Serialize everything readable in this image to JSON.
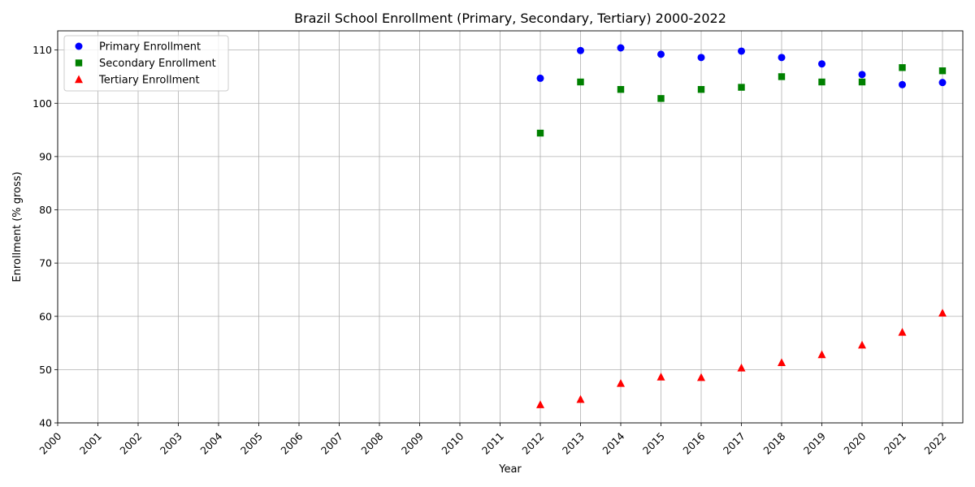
{
  "chart_data": {
    "type": "scatter",
    "title": "Brazil School Enrollment (Primary, Secondary, Tertiary) 2000-2022",
    "xlabel": "Year",
    "ylabel": "Enrollment (% gross)",
    "xlim": [
      2000,
      2022
    ],
    "ylim": [
      40,
      113.6
    ],
    "x_ticks": [
      "2000",
      "2001",
      "2002",
      "2003",
      "2004",
      "2005",
      "2006",
      "2007",
      "2008",
      "2009",
      "2010",
      "2011",
      "2012",
      "2013",
      "2014",
      "2015",
      "2016",
      "2017",
      "2018",
      "2019",
      "2020",
      "2021",
      "2022"
    ],
    "y_ticks": [
      40,
      50,
      60,
      70,
      80,
      90,
      100,
      110
    ],
    "grid": true,
    "legend_position": "top-left",
    "series": [
      {
        "name": "Primary Enrollment",
        "marker": "circle",
        "color": "#0000ff",
        "x": [
          2012,
          2013,
          2014,
          2015,
          2016,
          2017,
          2018,
          2019,
          2020,
          2021,
          2022
        ],
        "values": [
          104.7,
          109.9,
          110.4,
          109.2,
          108.6,
          109.8,
          108.6,
          107.4,
          105.4,
          103.5,
          103.9
        ]
      },
      {
        "name": "Secondary Enrollment",
        "marker": "square",
        "color": "#008000",
        "x": [
          2012,
          2013,
          2014,
          2015,
          2016,
          2017,
          2018,
          2019,
          2020,
          2021,
          2022
        ],
        "values": [
          94.4,
          104.0,
          102.6,
          100.9,
          102.6,
          103.0,
          105.0,
          104.0,
          104.0,
          106.7,
          106.1
        ]
      },
      {
        "name": "Tertiary Enrollment",
        "marker": "triangle",
        "color": "#ff0000",
        "x": [
          2012,
          2013,
          2014,
          2015,
          2016,
          2017,
          2018,
          2019,
          2020,
          2021,
          2022
        ],
        "values": [
          43.4,
          44.4,
          47.4,
          48.6,
          48.5,
          50.3,
          51.3,
          52.8,
          54.6,
          57.0,
          60.6
        ]
      }
    ]
  }
}
